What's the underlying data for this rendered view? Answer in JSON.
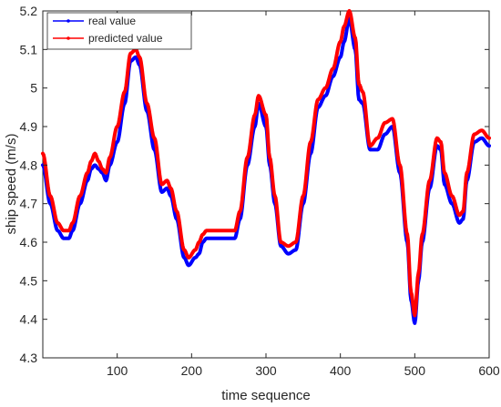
{
  "chart_data": {
    "type": "line",
    "title": "",
    "xlabel": "time sequence",
    "ylabel": "ship speed (m/s)",
    "xlim": [
      0,
      600
    ],
    "ylim": [
      4.3,
      5.2
    ],
    "xticks": [
      100,
      200,
      300,
      400,
      500,
      600
    ],
    "yticks": [
      4.3,
      4.4,
      4.5,
      4.6,
      4.7,
      4.8,
      4.9,
      5.0,
      5.1,
      5.2
    ],
    "xtick_labels": [
      "100",
      "200",
      "300",
      "400",
      "500",
      "600"
    ],
    "ytick_labels": [
      "4.3",
      "4.4",
      "4.5",
      "4.6",
      "4.7",
      "4.8",
      "4.9",
      "5",
      "5.1",
      "5.2"
    ],
    "grid": false,
    "legend_position": "top-left",
    "series": [
      {
        "name": "real value",
        "color": "#0000ff",
        "x": [
          0,
          10,
          20,
          28,
          35,
          40,
          50,
          60,
          65,
          70,
          75,
          80,
          85,
          90,
          100,
          110,
          118,
          125,
          130,
          140,
          150,
          160,
          167,
          172,
          180,
          190,
          196,
          205,
          210,
          215,
          220,
          230,
          240,
          250,
          258,
          265,
          275,
          285,
          290,
          300,
          305,
          312,
          320,
          330,
          340,
          350,
          360,
          370,
          380,
          390,
          400,
          405,
          412,
          420,
          425,
          430,
          440,
          450,
          460,
          470,
          480,
          490,
          495,
          500,
          505,
          510,
          520,
          530,
          535,
          540,
          550,
          560,
          565,
          570,
          580,
          590,
          600
        ],
        "values": [
          4.8,
          4.7,
          4.63,
          4.61,
          4.61,
          4.63,
          4.7,
          4.76,
          4.79,
          4.8,
          4.79,
          4.78,
          4.76,
          4.8,
          4.86,
          4.96,
          5.07,
          5.08,
          5.06,
          4.94,
          4.84,
          4.73,
          4.74,
          4.72,
          4.66,
          4.56,
          4.54,
          4.56,
          4.57,
          4.6,
          4.61,
          4.61,
          4.61,
          4.61,
          4.61,
          4.66,
          4.8,
          4.9,
          4.96,
          4.9,
          4.8,
          4.7,
          4.59,
          4.57,
          4.58,
          4.7,
          4.83,
          4.95,
          4.98,
          5.03,
          5.08,
          5.12,
          5.18,
          5.1,
          4.97,
          4.96,
          4.84,
          4.84,
          4.88,
          4.9,
          4.78,
          4.6,
          4.45,
          4.39,
          4.5,
          4.6,
          4.74,
          4.85,
          4.84,
          4.75,
          4.7,
          4.65,
          4.66,
          4.76,
          4.86,
          4.87,
          4.85
        ]
      },
      {
        "name": "predicted value",
        "color": "#ff0000",
        "x": [
          0,
          10,
          20,
          28,
          35,
          40,
          50,
          60,
          65,
          70,
          75,
          80,
          85,
          90,
          100,
          110,
          118,
          125,
          130,
          140,
          150,
          160,
          167,
          172,
          180,
          190,
          196,
          205,
          210,
          215,
          220,
          230,
          240,
          250,
          258,
          265,
          275,
          285,
          290,
          300,
          305,
          312,
          320,
          330,
          340,
          350,
          360,
          370,
          380,
          390,
          400,
          405,
          412,
          420,
          425,
          430,
          440,
          450,
          460,
          470,
          480,
          490,
          495,
          500,
          505,
          510,
          520,
          530,
          535,
          540,
          550,
          560,
          565,
          570,
          580,
          590,
          600
        ],
        "values": [
          4.83,
          4.72,
          4.65,
          4.63,
          4.63,
          4.65,
          4.72,
          4.78,
          4.81,
          4.83,
          4.81,
          4.79,
          4.78,
          4.82,
          4.9,
          4.99,
          5.09,
          5.1,
          5.08,
          4.96,
          4.87,
          4.75,
          4.76,
          4.74,
          4.68,
          4.58,
          4.56,
          4.58,
          4.6,
          4.62,
          4.63,
          4.63,
          4.63,
          4.63,
          4.63,
          4.68,
          4.82,
          4.93,
          4.98,
          4.93,
          4.82,
          4.72,
          4.6,
          4.59,
          4.6,
          4.72,
          4.86,
          4.97,
          5.0,
          5.05,
          5.12,
          5.16,
          5.2,
          5.13,
          5.01,
          4.99,
          4.85,
          4.87,
          4.91,
          4.92,
          4.8,
          4.62,
          4.47,
          4.41,
          4.52,
          4.62,
          4.76,
          4.87,
          4.86,
          4.78,
          4.72,
          4.67,
          4.68,
          4.78,
          4.88,
          4.89,
          4.87
        ]
      }
    ]
  }
}
